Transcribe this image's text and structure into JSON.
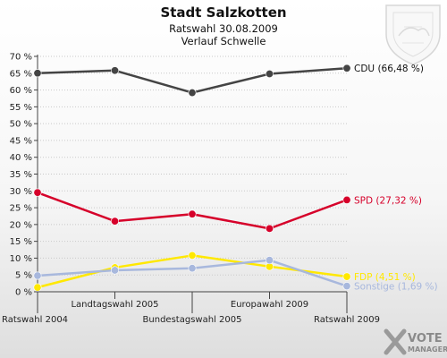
{
  "chart_data": {
    "type": "line",
    "title": "Stadt Salzkotten",
    "subtitle": "Ratswahl 30.08.2009",
    "subtitle2": "Verlauf Schwelle",
    "ylim": [
      0,
      70
    ],
    "yticks": [
      "0 %",
      "5 %",
      "10 %",
      "15 %",
      "20 %",
      "25 %",
      "30 %",
      "35 %",
      "40 %",
      "45 %",
      "50 %",
      "55 %",
      "60 %",
      "65 %",
      "70 %"
    ],
    "ytick_values": [
      0,
      5,
      10,
      15,
      20,
      25,
      30,
      35,
      40,
      45,
      50,
      55,
      60,
      65,
      70
    ],
    "categories": [
      "Ratswahl 2004",
      "Landtagswahl 2005",
      "Bundestagswahl 2005",
      "Europawahl 2009",
      "Ratswahl 2009"
    ],
    "grid": true,
    "series": [
      {
        "name": "CDU",
        "label": "CDU (66,48 %)",
        "color": "#444444",
        "label_color": "#111111",
        "values": [
          65.0,
          65.8,
          59.2,
          64.8,
          66.48
        ]
      },
      {
        "name": "SPD",
        "label": "SPD (27,32 %)",
        "color": "#d6002a",
        "label_color": "#d6002a",
        "values": [
          29.5,
          21.0,
          23.1,
          18.8,
          27.32
        ]
      },
      {
        "name": "FDP",
        "label": "FDP (4,51 %)",
        "color": "#ffe800",
        "label_color": "#ffe800",
        "values": [
          1.3,
          7.2,
          10.8,
          7.5,
          4.51
        ]
      },
      {
        "name": "Sonstige",
        "label": "Sonstige (1,69 %)",
        "color": "#a8b8dd",
        "label_color": "#a8b8dd",
        "values": [
          4.8,
          6.4,
          7.0,
          9.4,
          1.69
        ]
      }
    ]
  },
  "watermark": {
    "text1": "VOTE",
    "text2": "MANAGER"
  },
  "emblem": "coat-of-arms"
}
